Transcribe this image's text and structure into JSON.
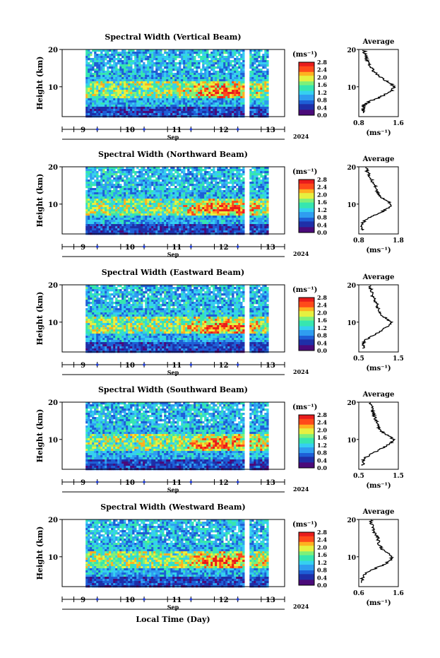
{
  "figure": {
    "x_axis_title": "Local Time (Day)",
    "month_label": "Sep",
    "year_label": "2024",
    "day_ticks": [
      "9",
      "10",
      "11",
      "12",
      "13"
    ],
    "colorbar_unit": "(ms⁻¹)",
    "colorbar_ticks": [
      "0.0",
      "0.4",
      "0.8",
      "1.2",
      "1.6",
      "2.0",
      "2.4",
      "2.8"
    ],
    "average_title": "Average",
    "average_unit": "(ms⁻¹)",
    "height_label": "Height (km)",
    "height_ticks": [
      "10",
      "20"
    ]
  },
  "colors": {
    "scale": [
      "#4b0a7a",
      "#1f2fa8",
      "#1e5fd6",
      "#2f9df0",
      "#35d0f0",
      "#36e6b0",
      "#7ef07a",
      "#e6f040",
      "#ffb020",
      "#ff4a1a",
      "#e81c1c"
    ],
    "axis_tick_marker": "#1f3bd1"
  },
  "chart_data": [
    {
      "type": "heatmap",
      "title": "Spectral Width (Vertical Beam)",
      "ylabel": "Height (km)",
      "ylim": [
        2,
        20
      ],
      "xlim": [
        "2024-09-08T18:00",
        "2024-09-13T12:00"
      ],
      "colorbar": {
        "range": [
          0.0,
          2.8
        ],
        "unit": "ms⁻¹"
      },
      "data_gaps": [
        "before 09-09 06:00",
        "09-12 09:00–10:00",
        "09-12 15:00–18:00",
        "after 09-13 03:00"
      ],
      "average_profile": {
        "title": "Average",
        "xlabel": "(ms⁻¹)",
        "xlim": [
          0.8,
          1.6
        ],
        "xtick_labels": [
          "0.8",
          "1.6"
        ],
        "height": [
          3,
          4,
          5,
          6,
          7,
          8,
          9,
          10,
          11,
          12,
          13,
          14,
          15,
          16,
          17,
          18,
          19,
          20
        ],
        "values": [
          0.9,
          0.88,
          0.9,
          1.0,
          1.2,
          1.35,
          1.48,
          1.52,
          1.42,
          1.3,
          1.2,
          1.12,
          1.08,
          1.02,
          0.98,
          0.95,
          0.92,
          0.9
        ]
      }
    },
    {
      "type": "heatmap",
      "title": "Spectral Width (Northward Beam)",
      "ylabel": "Height (km)",
      "ylim": [
        2,
        20
      ],
      "xlim": [
        "2024-09-08T18:00",
        "2024-09-13T12:00"
      ],
      "colorbar": {
        "range": [
          0.0,
          2.8
        ],
        "unit": "ms⁻¹"
      },
      "data_gaps": [
        "before 09-09 06:00",
        "09-12 09:00–10:00",
        "09-12 15:00–18:00",
        "after 09-13 03:00"
      ],
      "average_profile": {
        "title": "Average",
        "xlabel": "(ms⁻¹)",
        "xlim": [
          0.8,
          1.8
        ],
        "xtick_labels": [
          "0.8",
          "1.8"
        ],
        "height": [
          3,
          4,
          5,
          6,
          7,
          8,
          9,
          10,
          11,
          12,
          13,
          14,
          15,
          16,
          17,
          18,
          19,
          20
        ],
        "values": [
          0.9,
          0.88,
          0.9,
          1.0,
          1.2,
          1.4,
          1.55,
          1.62,
          1.5,
          1.35,
          1.28,
          1.25,
          1.22,
          1.15,
          1.1,
          1.05,
          1.0,
          0.98
        ]
      }
    },
    {
      "type": "heatmap",
      "title": "Spectral Width (Eastward Beam)",
      "ylabel": "Height (km)",
      "ylim": [
        2,
        20
      ],
      "xlim": [
        "2024-09-08T18:00",
        "2024-09-13T12:00"
      ],
      "colorbar": {
        "range": [
          0.0,
          2.8
        ],
        "unit": "ms⁻¹"
      },
      "data_gaps": [
        "before 09-09 06:00",
        "09-12 09:00–10:00",
        "09-12 15:00–18:00",
        "after 09-13 03:00"
      ],
      "average_profile": {
        "title": "Average",
        "xlabel": "(ms⁻¹)",
        "xlim": [
          0.5,
          1.5
        ],
        "xtick_labels": [
          "0.5",
          "1.5"
        ],
        "height": [
          3,
          4,
          5,
          6,
          7,
          8,
          9,
          10,
          11,
          12,
          13,
          14,
          15,
          16,
          17,
          18,
          19,
          20
        ],
        "values": [
          0.62,
          0.6,
          0.65,
          0.78,
          0.95,
          1.1,
          1.25,
          1.32,
          1.2,
          1.05,
          1.0,
          0.98,
          0.95,
          0.9,
          0.85,
          0.82,
          0.8,
          0.78
        ]
      }
    },
    {
      "type": "heatmap",
      "title": "Spectral Width (Southward Beam)",
      "ylabel": "Height (km)",
      "ylim": [
        2,
        20
      ],
      "xlim": [
        "2024-09-08T18:00",
        "2024-09-13T12:00"
      ],
      "colorbar": {
        "range": [
          0.0,
          2.8
        ],
        "unit": "ms⁻¹"
      },
      "data_gaps": [
        "before 09-09 06:00",
        "09-12 09:00–10:00",
        "09-12 15:00–18:00",
        "after 09-13 03:00"
      ],
      "average_profile": {
        "title": "Average",
        "xlabel": "(ms⁻¹)",
        "xlim": [
          0.5,
          1.5
        ],
        "xtick_labels": [
          "0.5",
          "1.5"
        ],
        "height": [
          3,
          4,
          5,
          6,
          7,
          8,
          9,
          10,
          11,
          12,
          13,
          14,
          15,
          16,
          17,
          18,
          19,
          20
        ],
        "values": [
          0.62,
          0.6,
          0.65,
          0.8,
          0.98,
          1.15,
          1.3,
          1.38,
          1.25,
          1.1,
          1.02,
          0.98,
          0.95,
          0.9,
          0.86,
          0.84,
          0.82,
          0.8
        ]
      }
    },
    {
      "type": "heatmap",
      "title": "Spectral Width (Westward Beam)",
      "ylabel": "Height (km)",
      "ylim": [
        2,
        20
      ],
      "xlim": [
        "2024-09-08T18:00",
        "2024-09-13T12:00"
      ],
      "colorbar": {
        "range": [
          0.0,
          2.8
        ],
        "unit": "ms⁻¹"
      },
      "data_gaps": [
        "before 09-09 06:00",
        "09-12 09:00–10:00",
        "09-12 15:00–18:00",
        "after 09-13 03:00"
      ],
      "average_profile": {
        "title": "Average",
        "xlabel": "(ms⁻¹)",
        "xlim": [
          0.6,
          1.6
        ],
        "xtick_labels": [
          "0.6",
          "1.6"
        ],
        "height": [
          3,
          4,
          5,
          6,
          7,
          8,
          9,
          10,
          11,
          12,
          13,
          14,
          15,
          16,
          17,
          18,
          19,
          20
        ],
        "values": [
          0.7,
          0.68,
          0.72,
          0.85,
          1.05,
          1.25,
          1.4,
          1.45,
          1.35,
          1.2,
          1.12,
          1.1,
          1.08,
          1.02,
          0.98,
          0.95,
          0.92,
          0.9
        ]
      }
    }
  ]
}
